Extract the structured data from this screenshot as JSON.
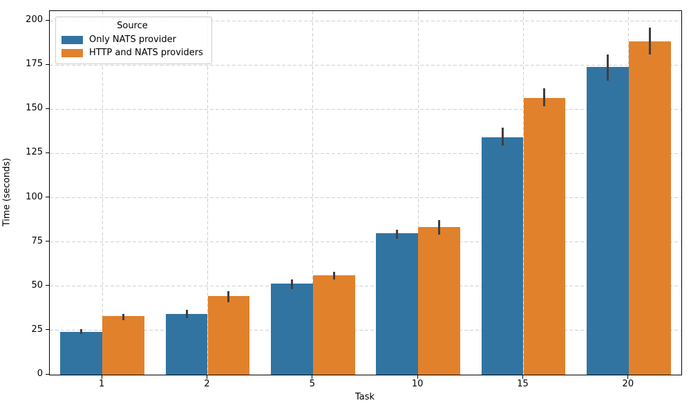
{
  "chart_data": {
    "type": "bar",
    "title": "",
    "xlabel": "Task",
    "ylabel": "Time (seconds)",
    "categories": [
      "1",
      "2",
      "5",
      "10",
      "15",
      "20"
    ],
    "series": [
      {
        "name": "Only NATS provider",
        "color": "#3274A1",
        "values": [
          24,
          34.5,
          51.5,
          80,
          134,
          174
        ],
        "error_low": [
          23,
          32,
          48.5,
          77,
          129.5,
          166
        ],
        "error_high": [
          25.7,
          36.5,
          54,
          82,
          139.5,
          181
        ]
      },
      {
        "name": "HTTP and NATS providers",
        "color": "#E1812C",
        "values": [
          33,
          44.5,
          56,
          83.5,
          156.5,
          188.5
        ],
        "error_low": [
          31,
          41,
          54,
          79,
          151.5,
          181
        ],
        "error_high": [
          34.5,
          47,
          58,
          87.5,
          162,
          196
        ]
      }
    ],
    "ylim": [
      0,
      205.5
    ],
    "yticks": [
      0,
      25,
      50,
      75,
      100,
      125,
      150,
      175,
      200
    ],
    "grid": "dashed",
    "grid_color": "#cfcfcf",
    "error_bar_color": "#3F3F3F",
    "legend": {
      "title": "Source",
      "position": "upper-left"
    }
  }
}
